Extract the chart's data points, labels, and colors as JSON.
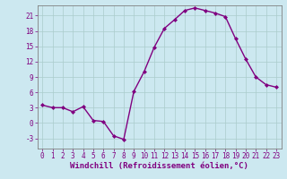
{
  "x": [
    0,
    1,
    2,
    3,
    4,
    5,
    6,
    7,
    8,
    9,
    10,
    11,
    12,
    13,
    14,
    15,
    16,
    17,
    18,
    19,
    20,
    21,
    22,
    23
  ],
  "y": [
    3.5,
    3.0,
    3.0,
    2.2,
    3.2,
    0.5,
    0.3,
    -2.5,
    -3.2,
    6.2,
    10.0,
    14.8,
    18.5,
    20.2,
    22.0,
    22.5,
    22.0,
    21.5,
    20.8,
    16.5,
    12.5,
    9.0,
    7.5,
    7.0
  ],
  "line_color": "#800080",
  "marker": "D",
  "marker_size": 2.0,
  "line_width": 1.0,
  "bg_color": "#cce8f0",
  "grid_color": "#aacccc",
  "xlabel": "Windchill (Refroidissement éolien,°C)",
  "xlabel_color": "#800080",
  "tick_color": "#800080",
  "spine_color": "#808080",
  "xlim": [
    -0.5,
    23.5
  ],
  "ylim": [
    -5.0,
    23.0
  ],
  "yticks": [
    -3,
    0,
    3,
    6,
    9,
    12,
    15,
    18,
    21
  ],
  "xticks": [
    0,
    1,
    2,
    3,
    4,
    5,
    6,
    7,
    8,
    9,
    10,
    11,
    12,
    13,
    14,
    15,
    16,
    17,
    18,
    19,
    20,
    21,
    22,
    23
  ],
  "label_fontsize": 6.5,
  "tick_fontsize": 5.5
}
